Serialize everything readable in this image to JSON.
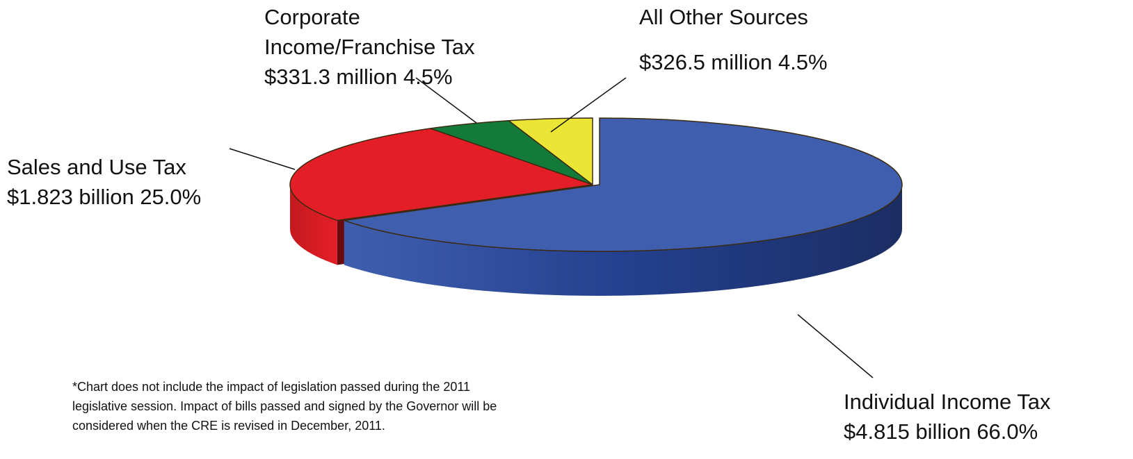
{
  "chart_data": {
    "type": "pie",
    "style": "3d-exploded",
    "slices": [
      {
        "label": "Individual Income Tax",
        "amount": "$4.815 billion",
        "value": 4815.0,
        "percent": "66.0%",
        "color": "#3f5fae"
      },
      {
        "label": "Sales and Use Tax",
        "amount": "$1.823 billion",
        "value": 1823.0,
        "percent": "25.0%",
        "color": "#e41e26"
      },
      {
        "label": "Corporate Income/Franchise Tax",
        "amount": "$331.3 million",
        "value": 331.3,
        "percent": "4.5%",
        "color": "#137a3a"
      },
      {
        "label": "All Other Sources",
        "amount": "$326.5 million",
        "value": 326.5,
        "percent": "4.5%",
        "color": "#ebe635"
      }
    ]
  },
  "labels": {
    "corporate": {
      "line1": "Corporate",
      "line2": "Income/Franchise Tax",
      "line3": "$331.3 million  4.5%"
    },
    "other": {
      "line1": "All Other Sources",
      "line2": "$326.5 million 4.5%"
    },
    "sales": {
      "line1": "Sales and Use Tax",
      "line2": "$1.823 billion  25.0%"
    },
    "individual": {
      "line1": "Individual Income Tax",
      "line2": "$4.815 billion 66.0%"
    }
  },
  "footnote": {
    "line1": "*Chart does not include the impact of legislation passed during the 2011",
    "line2": "legislative session.  Impact of bills passed and signed by the Governor will be",
    "line3": "considered when the CRE is revised in December, 2011."
  }
}
